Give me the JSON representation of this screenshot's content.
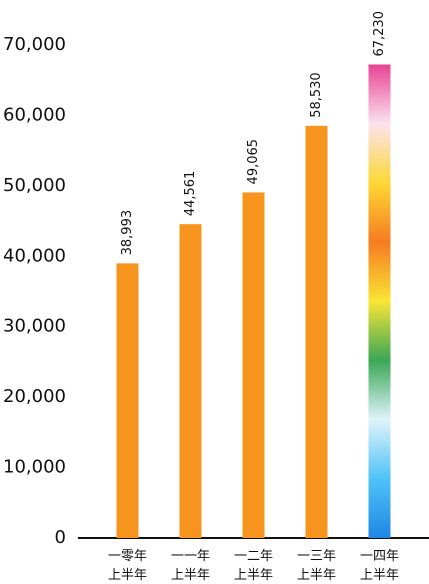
{
  "chart_data": {
    "type": "bar",
    "categories": [
      "一零年\n上半年",
      "一一年\n上半年",
      "一二年\n上半年",
      "一三年\n上半年",
      "一四年\n上半年"
    ],
    "values": [
      38993,
      44561,
      49065,
      58530,
      67230
    ],
    "value_labels": [
      "38,993",
      "44,561",
      "49,065",
      "58,530",
      "67,230"
    ],
    "color": "#f7941d",
    "highlight_colors": [
      "#e84393",
      "#fbe3ef",
      "#fdd835",
      "#f57c20",
      "#f9e534",
      "#3aa757",
      "#dff3fb",
      "#4fc3f7",
      "#1e88e5"
    ],
    "ylim": [
      0,
      70000
    ],
    "yticks": [
      {
        "value": 0,
        "label": "0"
      },
      {
        "value": 10000,
        "label": "10,000"
      },
      {
        "value": 20000,
        "label": "20,000"
      },
      {
        "value": 30000,
        "label": "30,000"
      },
      {
        "value": 40000,
        "label": "40,000"
      },
      {
        "value": 50000,
        "label": "50,000"
      },
      {
        "value": 60000,
        "label": "60,000"
      },
      {
        "value": 70000,
        "label": "70,000"
      }
    ]
  }
}
